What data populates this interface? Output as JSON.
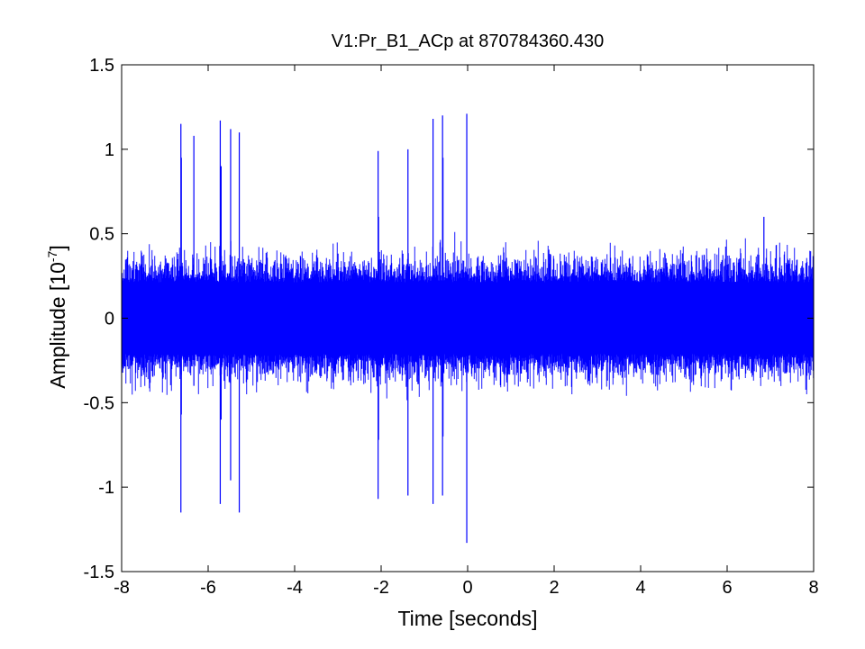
{
  "chart_data": {
    "type": "line",
    "title": "V1:Pr_B1_ACp at 870784360.430",
    "xlabel": "Time [seconds]",
    "ylabel_main": "Amplitude [10",
    "ylabel_exp": "-7",
    "ylabel_close": "]",
    "xlim": [
      -8,
      8
    ],
    "ylim": [
      -1.5,
      1.5
    ],
    "xticks": [
      -8,
      -6,
      -4,
      -2,
      0,
      2,
      4,
      6,
      8
    ],
    "xtick_labels": [
      "-8",
      "-6",
      "-4",
      "-2",
      "0",
      "2",
      "4",
      "6",
      "8"
    ],
    "yticks": [
      -1.5,
      -1,
      -0.5,
      0,
      0.5,
      1,
      1.5
    ],
    "ytick_labels": [
      "-1.5",
      "-1",
      "-0.5",
      "0",
      "0.5",
      "1",
      "1.5"
    ],
    "grid": false,
    "line_color": "#0000ff",
    "noise_band": {
      "typical_amplitude": 0.25,
      "peak_amplitude": 0.45
    },
    "glitches": [
      {
        "t": -6.63,
        "max": 1.15,
        "min": -1.15
      },
      {
        "t": -6.62,
        "max": 0.95,
        "min": -0.57
      },
      {
        "t": -6.33,
        "max": 1.08,
        "min": -0.4
      },
      {
        "t": -5.72,
        "max": 1.17,
        "min": -1.1
      },
      {
        "t": -5.7,
        "max": 0.9,
        "min": -0.6
      },
      {
        "t": -5.48,
        "max": 1.12,
        "min": -0.96
      },
      {
        "t": -5.28,
        "max": 1.1,
        "min": -1.15
      },
      {
        "t": -2.07,
        "max": 0.99,
        "min": -1.07
      },
      {
        "t": -2.06,
        "max": 0.6,
        "min": -0.72
      },
      {
        "t": -1.38,
        "max": 1.0,
        "min": -1.05
      },
      {
        "t": -0.8,
        "max": 1.18,
        "min": -1.1
      },
      {
        "t": -0.58,
        "max": 1.2,
        "min": -1.05
      },
      {
        "t": -0.57,
        "max": 0.95,
        "min": -0.7
      },
      {
        "t": -0.02,
        "max": 1.21,
        "min": -1.33
      },
      {
        "t": 6.85,
        "max": 0.6,
        "min": -0.3
      }
    ]
  }
}
